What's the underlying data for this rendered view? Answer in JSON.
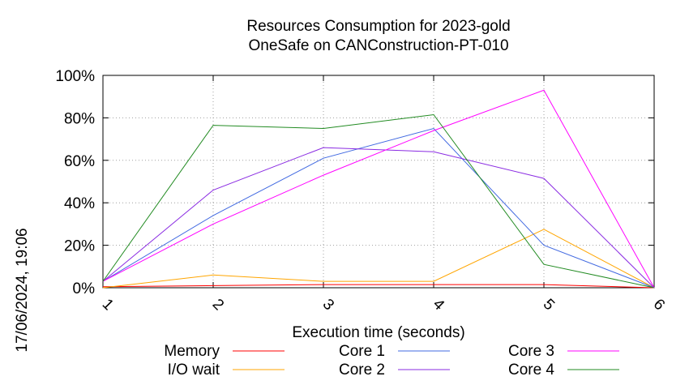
{
  "chart_data": {
    "type": "line",
    "title": "Resources Consumption for 2023-gold",
    "subtitle": "OneSafe on CANConstruction-PT-010",
    "xlabel": "Execution time (seconds)",
    "ylabel": "",
    "x": [
      1,
      2,
      3,
      4,
      5,
      6
    ],
    "xlim": [
      1,
      6
    ],
    "ylim": [
      0,
      100
    ],
    "x_ticks": [
      "1",
      "2",
      "3",
      "4",
      "5",
      "6"
    ],
    "y_ticks": [
      "0%",
      "20%",
      "40%",
      "60%",
      "80%",
      "100%"
    ],
    "y_tick_values": [
      0,
      20,
      40,
      60,
      80,
      100
    ],
    "grid": true,
    "legend_position": "bottom",
    "series": [
      {
        "name": "Memory",
        "color": "#ff0000",
        "values": [
          0.5,
          1,
          1.5,
          1.5,
          1.5,
          0
        ]
      },
      {
        "name": "I/O wait",
        "color": "#ffa500",
        "values": [
          0,
          6,
          3,
          3,
          27.5,
          0
        ]
      },
      {
        "name": "Core 1",
        "color": "#4169e1",
        "values": [
          3,
          34,
          61,
          75,
          20,
          0
        ]
      },
      {
        "name": "Core 2",
        "color": "#8a2be2",
        "values": [
          3,
          46,
          66,
          64,
          51.5,
          0
        ]
      },
      {
        "name": "Core 3",
        "color": "#ff00ff",
        "values": [
          3,
          30,
          53,
          74,
          93,
          0
        ]
      },
      {
        "name": "Core 4",
        "color": "#228b22",
        "values": [
          3,
          76.5,
          75,
          81.5,
          11,
          0
        ]
      }
    ]
  },
  "timestamp": "17/06/2024, 19:06"
}
